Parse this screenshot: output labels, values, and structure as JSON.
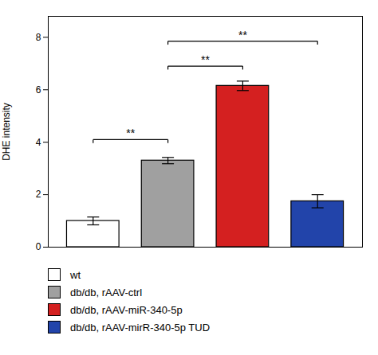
{
  "chart_data": {
    "type": "bar",
    "categories": [
      "wt",
      "db/db, rAAV-ctrl",
      "db/db, rAAV-miR-340-5p",
      "db/db, rAAV-mirR-340-5p TUD"
    ],
    "values": [
      1.0,
      3.3,
      6.15,
      1.75
    ],
    "errors": [
      0.15,
      0.12,
      0.18,
      0.25
    ],
    "colors": [
      "#ffffff",
      "#a0a0a0",
      "#d42020",
      "#2244aa"
    ],
    "ylabel": "DHE intensity",
    "ylim": [
      0,
      8.8
    ],
    "yticks": [
      0,
      2,
      4,
      6,
      8
    ],
    "tick_labels": "y",
    "legend": "bottom",
    "annotations": [
      {
        "from": "wt",
        "to": "db/db, rAAV-ctrl",
        "y": 4.1,
        "label": "**"
      },
      {
        "from": "db/db, rAAV-ctrl",
        "to": "db/db, rAAV-miR-340-5p",
        "y": 6.9,
        "label": "**"
      },
      {
        "from": "db/db, rAAV-ctrl",
        "to": "db/db, rAAV-mirR-340-5p TUD",
        "y": 7.85,
        "label": "**"
      }
    ]
  }
}
